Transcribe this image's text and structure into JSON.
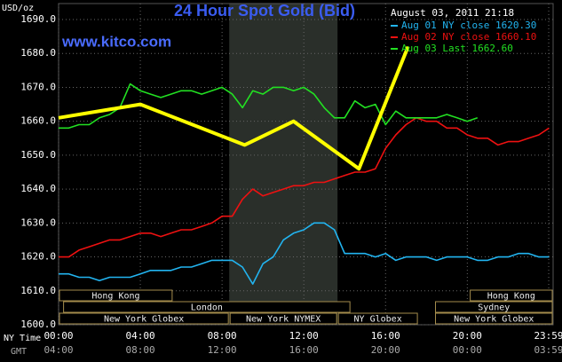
{
  "chart_data": {
    "type": "line",
    "title": "24 Hour Spot Gold (Bid)",
    "site": "www.kitco.com",
    "timestamp": "August 03, 2011 21:18",
    "unit_label": "USD/oz",
    "x_axis_labels": [
      "NY Time",
      "GMT"
    ],
    "x": [
      0,
      0.5,
      1,
      1.5,
      2,
      2.5,
      3,
      3.5,
      4,
      4.5,
      5,
      5.5,
      6,
      6.5,
      7,
      7.5,
      8,
      8.5,
      9,
      9.5,
      10,
      10.5,
      11,
      11.5,
      12,
      12.5,
      13,
      13.5,
      14,
      14.5,
      15,
      15.5,
      16,
      16.5,
      17,
      17.5,
      18,
      18.5,
      19,
      19.5,
      20,
      20.5,
      21,
      21.5,
      22,
      22.5,
      23,
      23.5,
      24
    ],
    "series": [
      {
        "name": "Aug 01 NY close 1620.30",
        "color": "#22b4f0",
        "values": [
          1615,
          1615,
          1614,
          1614,
          1613,
          1614,
          1614,
          1614,
          1615,
          1616,
          1616,
          1616,
          1617,
          1617,
          1618,
          1619,
          1619,
          1619,
          1617,
          1612,
          1618,
          1620,
          1625,
          1627,
          1628,
          1630,
          1630,
          1628,
          1621,
          1621,
          1621,
          1620,
          1621,
          1619,
          1620,
          1620,
          1620,
          1619,
          1620,
          1620,
          1620,
          1619,
          1619,
          1620,
          1620,
          1621,
          1621,
          1620,
          1620
        ]
      },
      {
        "name": "Aug 02 NY close 1660.10",
        "color": "#ee1111",
        "values": [
          1620,
          1620,
          1622,
          1623,
          1624,
          1625,
          1625,
          1626,
          1627,
          1627,
          1626,
          1627,
          1628,
          1628,
          1629,
          1630,
          1632,
          1632,
          1637,
          1640,
          1638,
          1639,
          1640,
          1641,
          1641,
          1642,
          1642,
          1643,
          1644,
          1645,
          1645,
          1646,
          1652,
          1656,
          1659,
          1661,
          1660,
          1660,
          1658,
          1658,
          1656,
          1655,
          1655,
          1653,
          1654,
          1654,
          1655,
          1656,
          1658
        ]
      },
      {
        "name": "Aug 03 Last 1662.60",
        "color": "#22e022",
        "values": [
          1658,
          1658,
          1659,
          1659,
          1661,
          1662,
          1664,
          1671,
          1669,
          1668,
          1667,
          1668,
          1669,
          1669,
          1668,
          1669,
          1670,
          1668,
          1664,
          1669,
          1668,
          1670,
          1670,
          1669,
          1670,
          1668,
          1664,
          1661,
          1661,
          1666,
          1664,
          1665,
          1659,
          1663,
          1661,
          1661,
          1661,
          1661,
          1662,
          1661,
          1660,
          1661,
          null,
          null,
          null,
          null,
          null,
          null,
          null
        ]
      },
      {
        "color": "#ffff00",
        "x": [
          0,
          4,
          9.1,
          11.5,
          14.7,
          17.1
        ],
        "values": [
          1661,
          1665,
          1653,
          1660,
          1646,
          1682
        ]
      }
    ],
    "xlim": [
      0,
      24.2
    ],
    "xticks": [
      {
        "value": 0,
        "label": "00:00"
      },
      {
        "value": 4,
        "label": "04:00"
      },
      {
        "value": 8,
        "label": "08:00"
      },
      {
        "value": 12,
        "label": "12:00"
      },
      {
        "value": 16,
        "label": "16:00"
      },
      {
        "value": 20,
        "label": "20:00"
      },
      {
        "value": 23.983,
        "label": "23:59"
      }
    ],
    "gmt_ticks": [
      "04:00",
      "08:00",
      "12:00",
      "16:00",
      "20:00",
      "00:00",
      "03:59"
    ],
    "ylim": [
      1600,
      1690
    ],
    "yticks": [
      {
        "value": 1600,
        "label": "1600.0"
      },
      {
        "value": 1610,
        "label": "1610.0"
      },
      {
        "value": 1620,
        "label": "1620.0"
      },
      {
        "value": 1630,
        "label": "1630.0"
      },
      {
        "value": 1640,
        "label": "1640.0"
      },
      {
        "value": 1650,
        "label": "1650.0"
      },
      {
        "value": 1660,
        "label": "1660.0"
      },
      {
        "value": 1670,
        "label": "1670.0"
      },
      {
        "value": 1680,
        "label": "1680.0"
      },
      {
        "value": 1690,
        "label": "1690.0"
      }
    ],
    "grid": true,
    "session_rows": [
      [
        {
          "label": "Hong Kong",
          "start": 0,
          "end": 5.6
        },
        {
          "label": "Hong Kong",
          "start": 20.1,
          "end": 24.2
        }
      ],
      [
        {
          "label": "London",
          "start": 0.2,
          "end": 14.3
        },
        {
          "label": "Sydney",
          "start": 18.4,
          "end": 24.2
        }
      ],
      [
        {
          "label": "New York Globex",
          "start": 0,
          "end": 8.35
        },
        {
          "label": "New York NYMEX",
          "start": 8.35,
          "end": 13.65,
          "shaded": true
        },
        {
          "label": "NY Globex",
          "start": 13.65,
          "end": 17.6
        },
        {
          "label": "New York Globex",
          "start": 18.4,
          "end": 24.2
        }
      ]
    ]
  }
}
